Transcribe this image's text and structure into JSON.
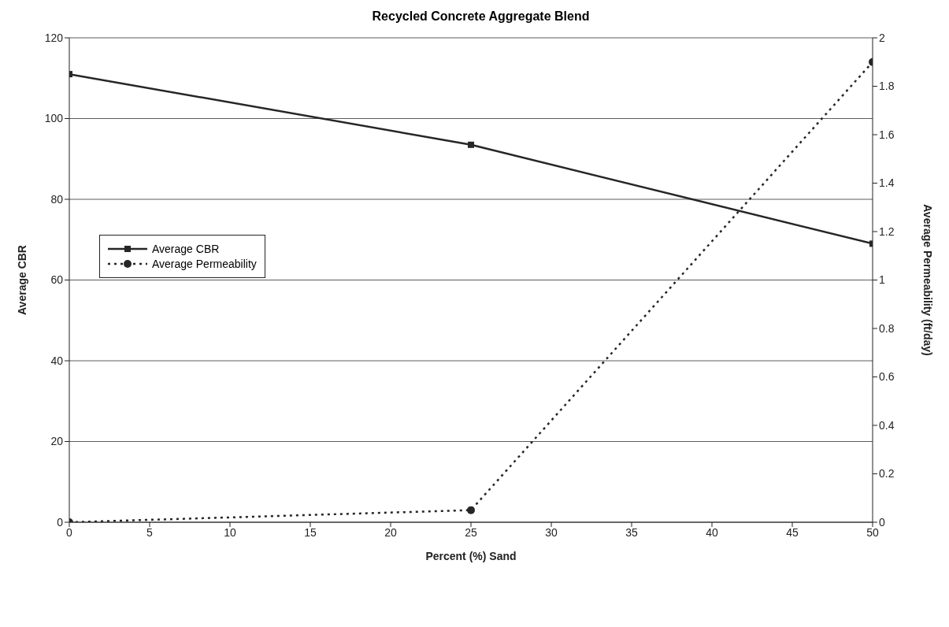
{
  "chart_data": {
    "type": "line",
    "title": "Recycled Concrete Aggregate Blend",
    "xlabel": "Percent (%) Sand",
    "ylabel": "Average CBR",
    "y2label": "Average Permeability (ft/day)",
    "x": [
      0,
      25,
      50
    ],
    "series": [
      {
        "name": "Average CBR",
        "color": "#262626",
        "values": [
          111,
          93.5,
          69
        ],
        "marker": "square",
        "line_style": "solid"
      },
      {
        "name": "Average Permeability",
        "color": "#262626",
        "values": [
          0,
          0.05,
          1.9
        ],
        "axis": "y2",
        "marker": "circle",
        "line_style": "dotted"
      }
    ],
    "xlim": [
      0,
      50
    ],
    "xticks": [
      0,
      5,
      10,
      15,
      20,
      25,
      30,
      35,
      40,
      45,
      50
    ],
    "ylim": [
      0,
      120
    ],
    "yticks": [
      0,
      20,
      40,
      60,
      80,
      100,
      120
    ],
    "y2lim": [
      0,
      2
    ],
    "y2ticks": [
      0,
      0.2,
      0.4,
      0.6,
      0.8,
      1,
      1.2,
      1.4,
      1.6,
      1.8,
      2
    ],
    "grid": "y",
    "legend": "left"
  }
}
